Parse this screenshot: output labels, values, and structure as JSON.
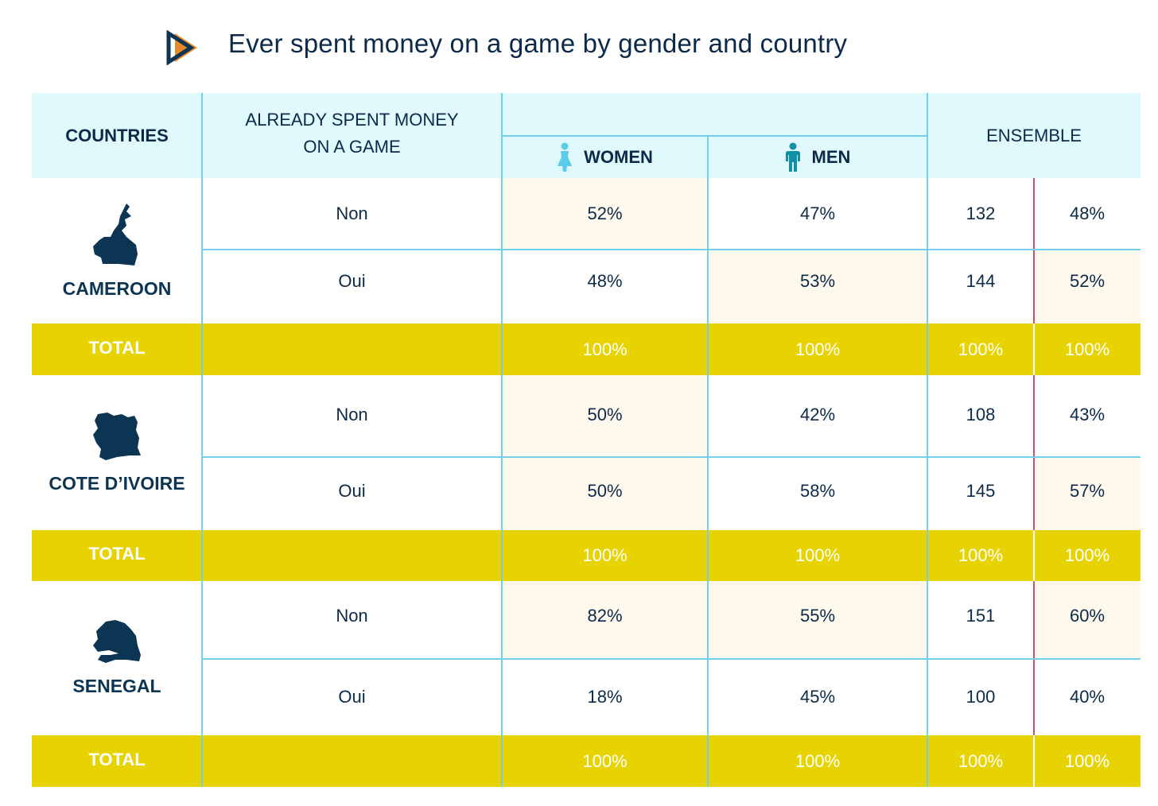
{
  "title": "Ever spent money on a game by gender and country",
  "icons": {
    "logo": "play-arrow-logo-icon",
    "women": "woman-figure-icon",
    "men": "man-figure-icon"
  },
  "colors": {
    "header_bg": "#e0f9fd",
    "total_bg": "#e8d302",
    "highlight_bg": "#fff8ec",
    "grid": "#74d0ea",
    "women_icon": "#5bcde8",
    "men_icon": "#118fa7",
    "text": "#0b2a4a"
  },
  "header": {
    "countries": "COUNTRIES",
    "spent_line1": "ALREADY SPENT MONEY",
    "spent_line2": "ON A GAME",
    "women": "WOMEN",
    "men": "MEN",
    "ensemble": "ENSEMBLE"
  },
  "chart_data": {
    "type": "table",
    "columns": [
      "COUNTRIES",
      "ALREADY SPENT MONEY ON A GAME",
      "WOMEN",
      "MEN",
      "ENSEMBLE",
      "ENSEMBLE"
    ],
    "countries": [
      {
        "name": "CAMEROON",
        "rows": [
          {
            "answer": "Non",
            "women": "52%",
            "men": "47%",
            "count": "132",
            "pct": "48%"
          },
          {
            "answer": "Oui",
            "women": "48%",
            "men": "53%",
            "count": "144",
            "pct": "52%"
          }
        ],
        "total": {
          "label": "TOTAL",
          "women": "100%",
          "men": "100%",
          "count": "100%",
          "pct": "100%"
        }
      },
      {
        "name": "COTE D’IVOIRE",
        "rows": [
          {
            "answer": "Non",
            "women": "50%",
            "men": "42%",
            "count": "108",
            "pct": "43%"
          },
          {
            "answer": "Oui",
            "women": "50%",
            "men": "58%",
            "count": "145",
            "pct": "57%"
          }
        ],
        "total": {
          "label": "TOTAL",
          "women": "100%",
          "men": "100%",
          "count": "100%",
          "pct": "100%"
        }
      },
      {
        "name": "SENEGAL",
        "rows": [
          {
            "answer": "Non",
            "women": "82%",
            "men": "55%",
            "count": "151",
            "pct": "60%"
          },
          {
            "answer": "Oui",
            "women": "18%",
            "men": "45%",
            "count": "100",
            "pct": "40%"
          }
        ],
        "total": {
          "label": "TOTAL",
          "women": "100%",
          "men": "100%",
          "count": "100%",
          "pct": "100%"
        }
      }
    ]
  }
}
